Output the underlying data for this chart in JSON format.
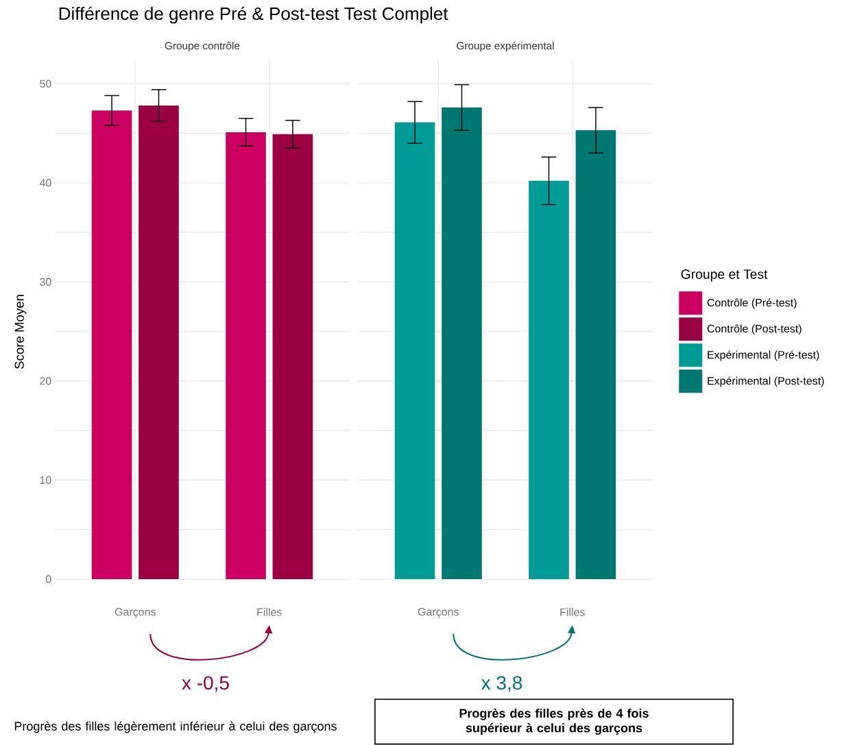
{
  "chart_data": [
    {
      "type": "bar",
      "title": "Différence de genre Pré & Post-test Test Complet",
      "subtitle": "Groupe contrôle",
      "ylabel": "Score Moyen",
      "legend_title": "Groupe et Test",
      "categories": [
        "Garçons",
        "Filles"
      ],
      "series": [
        {
          "name": "Contrôle (Pré-test)",
          "color": "#cc0060",
          "values": [
            47.3,
            45.1
          ],
          "errors": [
            1.5,
            1.4
          ]
        },
        {
          "name": "Contrôle (Post-test)",
          "color": "#9b0045",
          "values": [
            47.8,
            44.9
          ],
          "errors": [
            1.6,
            1.4
          ]
        }
      ],
      "ylim": [
        0,
        52.5
      ],
      "yticks": [
        0,
        {
          "value": 5,
          "label": null
        },
        10,
        {
          "value": 15,
          "label": null
        },
        20,
        {
          "value": 25,
          "label": null
        },
        30,
        {
          "value": 35,
          "label": null
        },
        40,
        {
          "value": 45,
          "label": null
        },
        50
      ],
      "grid": true,
      "legend": "right",
      "annotations": [
        "x -0,5",
        "Progrès des filles légèrement inférieur à celui des garçons"
      ]
    },
    {
      "type": "bar",
      "subtitle": "Groupe expérimental",
      "categories": [
        "Garçons",
        "Filles"
      ],
      "series": [
        {
          "name": "Expérimental (Pré-test)",
          "color": "#009b96",
          "values": [
            46.1,
            40.2
          ],
          "errors": [
            2.1,
            2.4
          ]
        },
        {
          "name": "Expérimental (Post-test)",
          "color": "#007872",
          "values": [
            47.6,
            45.3
          ],
          "errors": [
            2.3,
            2.3
          ]
        }
      ],
      "ylim": [
        0,
        52.5
      ],
      "yticks": [
        0,
        {
          "value": 5,
          "label": null
        },
        10,
        {
          "value": 15,
          "label": null
        },
        20,
        {
          "value": 25,
          "label": null
        },
        30,
        {
          "value": 35,
          "label": null
        },
        40,
        {
          "value": 45,
          "label": null
        },
        50
      ],
      "grid": true,
      "legend": "right",
      "tick_labels": "x",
      "annotations": [
        "x 3,8",
        "Progrès des filles près de 4 fois supérieur à celui des garçons"
      ]
    }
  ]
}
